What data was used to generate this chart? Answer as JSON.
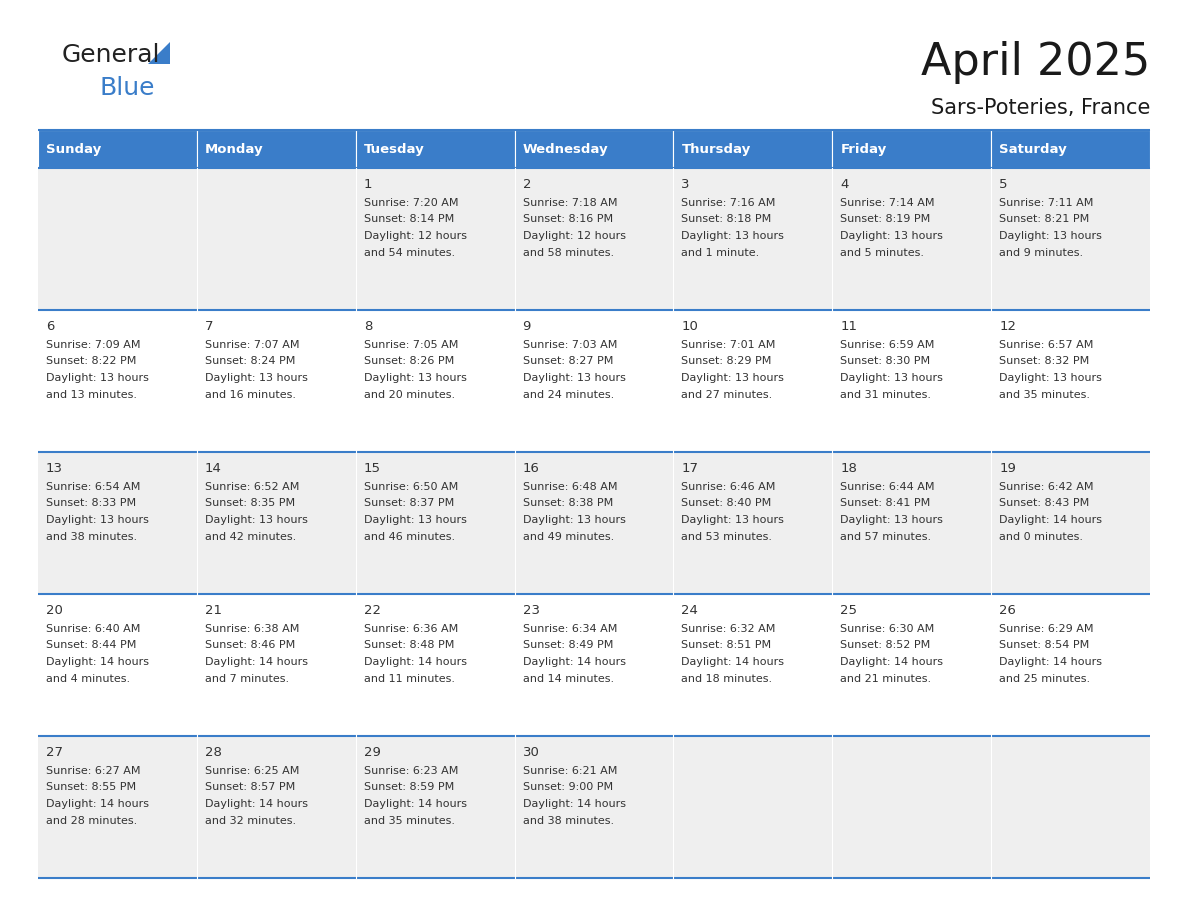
{
  "title": "April 2025",
  "subtitle": "Sars-Poteries, France",
  "days_of_week": [
    "Sunday",
    "Monday",
    "Tuesday",
    "Wednesday",
    "Thursday",
    "Friday",
    "Saturday"
  ],
  "header_bg": "#3A7DC9",
  "header_text_color": "#FFFFFF",
  "row_bg_odd": "#EFEFEF",
  "row_bg_even": "#FFFFFF",
  "cell_border_color": "#3A7DC9",
  "day_number_color": "#333333",
  "day_text_color": "#333333",
  "calendar_data": [
    [
      {
        "day": null,
        "info": null
      },
      {
        "day": null,
        "info": null
      },
      {
        "day": 1,
        "info": "Sunrise: 7:20 AM\nSunset: 8:14 PM\nDaylight: 12 hours\nand 54 minutes."
      },
      {
        "day": 2,
        "info": "Sunrise: 7:18 AM\nSunset: 8:16 PM\nDaylight: 12 hours\nand 58 minutes."
      },
      {
        "day": 3,
        "info": "Sunrise: 7:16 AM\nSunset: 8:18 PM\nDaylight: 13 hours\nand 1 minute."
      },
      {
        "day": 4,
        "info": "Sunrise: 7:14 AM\nSunset: 8:19 PM\nDaylight: 13 hours\nand 5 minutes."
      },
      {
        "day": 5,
        "info": "Sunrise: 7:11 AM\nSunset: 8:21 PM\nDaylight: 13 hours\nand 9 minutes."
      }
    ],
    [
      {
        "day": 6,
        "info": "Sunrise: 7:09 AM\nSunset: 8:22 PM\nDaylight: 13 hours\nand 13 minutes."
      },
      {
        "day": 7,
        "info": "Sunrise: 7:07 AM\nSunset: 8:24 PM\nDaylight: 13 hours\nand 16 minutes."
      },
      {
        "day": 8,
        "info": "Sunrise: 7:05 AM\nSunset: 8:26 PM\nDaylight: 13 hours\nand 20 minutes."
      },
      {
        "day": 9,
        "info": "Sunrise: 7:03 AM\nSunset: 8:27 PM\nDaylight: 13 hours\nand 24 minutes."
      },
      {
        "day": 10,
        "info": "Sunrise: 7:01 AM\nSunset: 8:29 PM\nDaylight: 13 hours\nand 27 minutes."
      },
      {
        "day": 11,
        "info": "Sunrise: 6:59 AM\nSunset: 8:30 PM\nDaylight: 13 hours\nand 31 minutes."
      },
      {
        "day": 12,
        "info": "Sunrise: 6:57 AM\nSunset: 8:32 PM\nDaylight: 13 hours\nand 35 minutes."
      }
    ],
    [
      {
        "day": 13,
        "info": "Sunrise: 6:54 AM\nSunset: 8:33 PM\nDaylight: 13 hours\nand 38 minutes."
      },
      {
        "day": 14,
        "info": "Sunrise: 6:52 AM\nSunset: 8:35 PM\nDaylight: 13 hours\nand 42 minutes."
      },
      {
        "day": 15,
        "info": "Sunrise: 6:50 AM\nSunset: 8:37 PM\nDaylight: 13 hours\nand 46 minutes."
      },
      {
        "day": 16,
        "info": "Sunrise: 6:48 AM\nSunset: 8:38 PM\nDaylight: 13 hours\nand 49 minutes."
      },
      {
        "day": 17,
        "info": "Sunrise: 6:46 AM\nSunset: 8:40 PM\nDaylight: 13 hours\nand 53 minutes."
      },
      {
        "day": 18,
        "info": "Sunrise: 6:44 AM\nSunset: 8:41 PM\nDaylight: 13 hours\nand 57 minutes."
      },
      {
        "day": 19,
        "info": "Sunrise: 6:42 AM\nSunset: 8:43 PM\nDaylight: 14 hours\nand 0 minutes."
      }
    ],
    [
      {
        "day": 20,
        "info": "Sunrise: 6:40 AM\nSunset: 8:44 PM\nDaylight: 14 hours\nand 4 minutes."
      },
      {
        "day": 21,
        "info": "Sunrise: 6:38 AM\nSunset: 8:46 PM\nDaylight: 14 hours\nand 7 minutes."
      },
      {
        "day": 22,
        "info": "Sunrise: 6:36 AM\nSunset: 8:48 PM\nDaylight: 14 hours\nand 11 minutes."
      },
      {
        "day": 23,
        "info": "Sunrise: 6:34 AM\nSunset: 8:49 PM\nDaylight: 14 hours\nand 14 minutes."
      },
      {
        "day": 24,
        "info": "Sunrise: 6:32 AM\nSunset: 8:51 PM\nDaylight: 14 hours\nand 18 minutes."
      },
      {
        "day": 25,
        "info": "Sunrise: 6:30 AM\nSunset: 8:52 PM\nDaylight: 14 hours\nand 21 minutes."
      },
      {
        "day": 26,
        "info": "Sunrise: 6:29 AM\nSunset: 8:54 PM\nDaylight: 14 hours\nand 25 minutes."
      }
    ],
    [
      {
        "day": 27,
        "info": "Sunrise: 6:27 AM\nSunset: 8:55 PM\nDaylight: 14 hours\nand 28 minutes."
      },
      {
        "day": 28,
        "info": "Sunrise: 6:25 AM\nSunset: 8:57 PM\nDaylight: 14 hours\nand 32 minutes."
      },
      {
        "day": 29,
        "info": "Sunrise: 6:23 AM\nSunset: 8:59 PM\nDaylight: 14 hours\nand 35 minutes."
      },
      {
        "day": 30,
        "info": "Sunrise: 6:21 AM\nSunset: 9:00 PM\nDaylight: 14 hours\nand 38 minutes."
      },
      {
        "day": null,
        "info": null
      },
      {
        "day": null,
        "info": null
      },
      {
        "day": null,
        "info": null
      }
    ]
  ]
}
